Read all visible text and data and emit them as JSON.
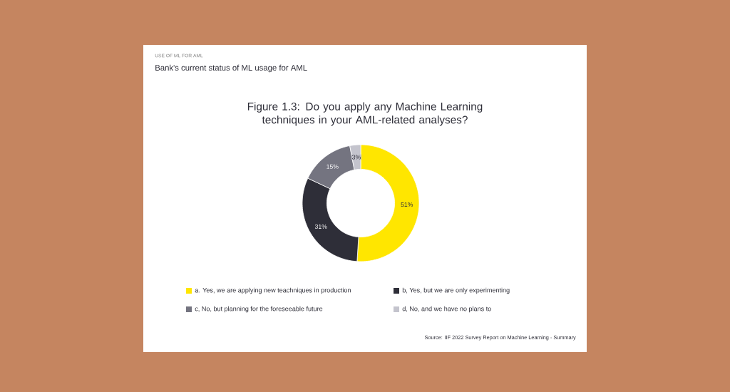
{
  "chart_data": {
    "type": "donut",
    "title": "Figure 1.3: Do you apply any Machine Learning techniques in your AML-related analyses?",
    "subtitle": "Bank's current status of ML usage for AML",
    "categories": [
      "a.  Yes, we are applying new teachniques in production",
      "b,  Yes, but we are only experimenting",
      "c,  No, but planning for the foreseeable future",
      "d,  No, and we have no plans to"
    ],
    "values": [
      51,
      31,
      15,
      3
    ],
    "colors": [
      "#ffe600",
      "#2e2e38",
      "#747480",
      "#c4c4cd"
    ],
    "value_labels": [
      "51%",
      "31%",
      "15%",
      "3%"
    ],
    "legend": "bottom",
    "annotations": [
      "USE OF ML FOR AML",
      "Source: IIF 2022 Survey Report on Machine Learning - Summary"
    ]
  }
}
